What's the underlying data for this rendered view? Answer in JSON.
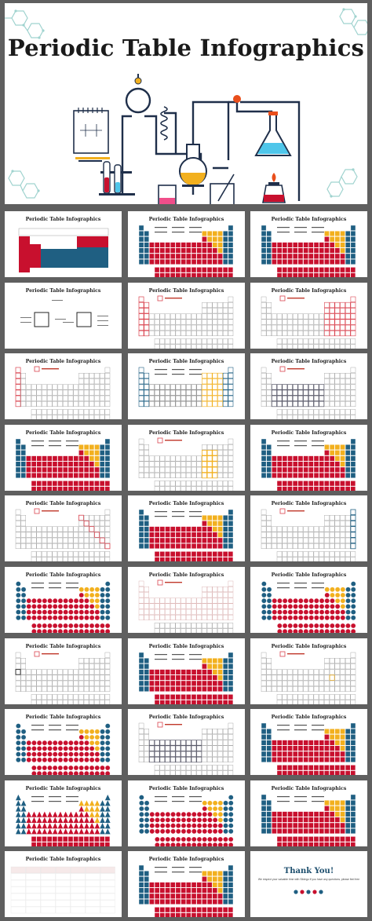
{
  "hero": {
    "title": "Periodic Table Infographics"
  },
  "thumb_title": "Periodic Table Infographics",
  "thank_you": {
    "title": "Thank You!",
    "line1": "We respect your valuable time with Slidego",
    "line2": "If you have any questions, please feel free"
  },
  "colors": {
    "red": "#c8102e",
    "blue": "#1f5f82",
    "yellow": "#f2b01e",
    "outline_red": "#d9434f",
    "dark": "#1f2f4a"
  },
  "icons": [
    "hexagon-molecule-icon",
    "lab-flask-icon",
    "clock-icon",
    "notepad-icon"
  ],
  "thumbs": [
    {
      "style": "blocks"
    },
    {
      "style": "full-small"
    },
    {
      "style": "full-color"
    },
    {
      "style": "element-diagram"
    },
    {
      "style": "outline-red"
    },
    {
      "style": "outline-legend"
    },
    {
      "style": "outline-red-small"
    },
    {
      "style": "full-blue-outline"
    },
    {
      "style": "outline-gray"
    },
    {
      "style": "full-color"
    },
    {
      "style": "outline-yellow"
    },
    {
      "style": "full-color"
    },
    {
      "style": "outline-red-diag"
    },
    {
      "style": "full-color"
    },
    {
      "style": "outline-blue"
    },
    {
      "style": "full-circles"
    },
    {
      "style": "outline-faint"
    },
    {
      "style": "full-circles"
    },
    {
      "style": "outline-dark"
    },
    {
      "style": "full-color"
    },
    {
      "style": "outline-yellow-small"
    },
    {
      "style": "full-circles"
    },
    {
      "style": "outline-gray"
    },
    {
      "style": "full-color"
    },
    {
      "style": "full-triangles"
    },
    {
      "style": "full-circles"
    },
    {
      "style": "full-color"
    },
    {
      "style": "table"
    },
    {
      "style": "full-color"
    },
    {
      "style": "thank-you"
    }
  ]
}
